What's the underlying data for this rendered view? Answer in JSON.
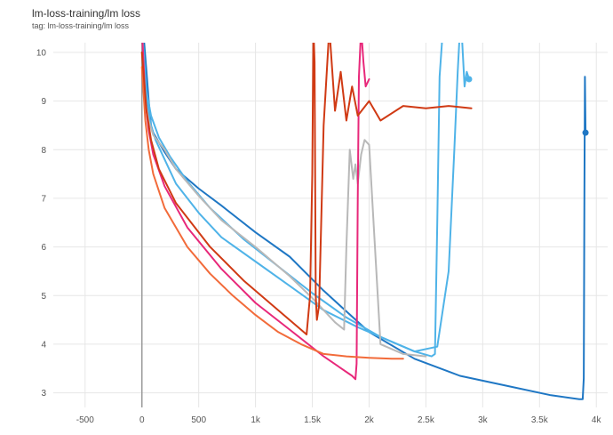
{
  "header": {
    "title": "lm-loss-training/lm loss",
    "tag": "tag: lm-loss-training/lm loss"
  },
  "chart_data": {
    "type": "line",
    "title": "lm-loss-training/lm loss",
    "xlim": [
      -780,
      4100
    ],
    "ylim": [
      2.7,
      10.2
    ],
    "x_ticks": [
      {
        "value": -500,
        "label": "-500"
      },
      {
        "value": 0,
        "label": "0"
      },
      {
        "value": 500,
        "label": "500"
      },
      {
        "value": 1000,
        "label": "1k"
      },
      {
        "value": 1500,
        "label": "1.5k"
      },
      {
        "value": 2000,
        "label": "2k"
      },
      {
        "value": 2500,
        "label": "2.5k"
      },
      {
        "value": 3000,
        "label": "3k"
      },
      {
        "value": 3500,
        "label": "3.5k"
      },
      {
        "value": 4000,
        "label": "4k"
      }
    ],
    "y_ticks": [
      {
        "value": 3,
        "label": "3"
      },
      {
        "value": 4,
        "label": "4"
      },
      {
        "value": 5,
        "label": "5"
      },
      {
        "value": 6,
        "label": "6"
      },
      {
        "value": 7,
        "label": "7"
      },
      {
        "value": 8,
        "label": "8"
      },
      {
        "value": 9,
        "label": "9"
      },
      {
        "value": 10,
        "label": "10"
      }
    ],
    "grid": true,
    "series": [
      {
        "color": "#1f77c4",
        "x": [
          0,
          20,
          40,
          60,
          80,
          100,
          150,
          200,
          300,
          500,
          700,
          1000,
          1300,
          1600,
          2000,
          2400,
          2800,
          3200,
          3600,
          3850,
          3880,
          3890,
          3895,
          3900,
          3905
        ],
        "y": [
          10.5,
          10.2,
          9.6,
          9.0,
          8.5,
          8.35,
          8.15,
          7.95,
          7.6,
          7.2,
          6.85,
          6.3,
          5.8,
          5.1,
          4.25,
          3.7,
          3.35,
          3.15,
          2.95,
          2.87,
          2.87,
          3.3,
          7.0,
          9.5,
          8.35
        ]
      },
      {
        "color": "#4fb3e8",
        "x": [
          0,
          30,
          50,
          80,
          120,
          200,
          300,
          500,
          700,
          1000,
          1300,
          1600,
          1900,
          2200,
          2400,
          2550,
          2580,
          2600,
          2620,
          2650
        ],
        "y": [
          10.5,
          9.3,
          8.9,
          8.5,
          8.2,
          7.8,
          7.3,
          6.7,
          6.2,
          5.7,
          5.2,
          4.7,
          4.35,
          4.05,
          3.85,
          3.75,
          3.8,
          6.5,
          9.5,
          10.5
        ]
      },
      {
        "color": "#4fb3e8",
        "x": [
          0,
          40,
          80,
          150,
          250,
          400,
          600,
          900,
          1200,
          1500,
          1800,
          2100,
          2400,
          2600,
          2700,
          2750,
          2780,
          2800,
          2820,
          2840,
          2860,
          2880
        ],
        "y": [
          10.5,
          9.2,
          8.7,
          8.25,
          7.85,
          7.35,
          6.8,
          6.15,
          5.6,
          5.05,
          4.55,
          4.15,
          3.85,
          3.95,
          5.5,
          8.0,
          9.6,
          10.5,
          10.2,
          9.3,
          9.6,
          9.45
        ]
      },
      {
        "color": "#b8b8b8",
        "x": [
          0,
          30,
          60,
          100,
          150,
          200,
          300,
          500,
          700,
          1000,
          1300,
          1500,
          1700,
          1780,
          1800,
          1830,
          1860,
          1880,
          1900,
          1930,
          1960,
          2000,
          2100,
          2300,
          2500
        ],
        "y": [
          10.5,
          9.0,
          8.6,
          8.3,
          8.15,
          8.0,
          7.6,
          7.05,
          6.55,
          6.0,
          5.4,
          4.95,
          4.45,
          4.3,
          6.0,
          8.0,
          7.4,
          7.7,
          7.3,
          7.9,
          8.2,
          8.1,
          4.0,
          3.8,
          3.75
        ]
      },
      {
        "color": "#e8287a",
        "x": [
          0,
          30,
          60,
          100,
          200,
          400,
          700,
          1000,
          1300,
          1600,
          1850,
          1880,
          1890,
          1900,
          1910,
          1930,
          1950,
          1970,
          2000
        ],
        "y": [
          10.5,
          9.0,
          8.4,
          7.9,
          7.25,
          6.4,
          5.55,
          4.85,
          4.3,
          3.75,
          3.35,
          3.28,
          3.6,
          7.0,
          9.5,
          10.5,
          9.8,
          9.3,
          9.45
        ]
      },
      {
        "color": "#f26b3a",
        "x": [
          0,
          30,
          60,
          100,
          200,
          400,
          600,
          800,
          1000,
          1200,
          1400,
          1600,
          1800,
          2000,
          2200,
          2300
        ],
        "y": [
          9.7,
          8.6,
          8.0,
          7.5,
          6.8,
          6.0,
          5.45,
          5.0,
          4.6,
          4.25,
          4.0,
          3.8,
          3.75,
          3.72,
          3.7,
          3.7
        ]
      },
      {
        "color": "#d03a14",
        "x": [
          0,
          40,
          80,
          150,
          300,
          600,
          900,
          1200,
          1450,
          1480,
          1500,
          1510,
          1520,
          1530,
          1540,
          1560,
          1600,
          1650,
          1700,
          1750,
          1800,
          1850,
          1900,
          2000,
          2100,
          2300,
          2500,
          2700,
          2900
        ],
        "y": [
          10.0,
          8.8,
          8.2,
          7.6,
          6.9,
          6.0,
          5.3,
          4.7,
          4.2,
          5.0,
          7.5,
          10.5,
          9.8,
          5.0,
          4.5,
          4.8,
          8.5,
          10.5,
          8.8,
          9.6,
          8.6,
          9.3,
          8.7,
          9.0,
          8.6,
          8.9,
          8.85,
          8.9,
          8.85
        ]
      }
    ],
    "end_markers": [
      {
        "color": "#1f77c4",
        "x": 3905,
        "y": 8.35
      },
      {
        "color": "#4fb3e8",
        "x": 2880,
        "y": 9.45
      }
    ]
  }
}
